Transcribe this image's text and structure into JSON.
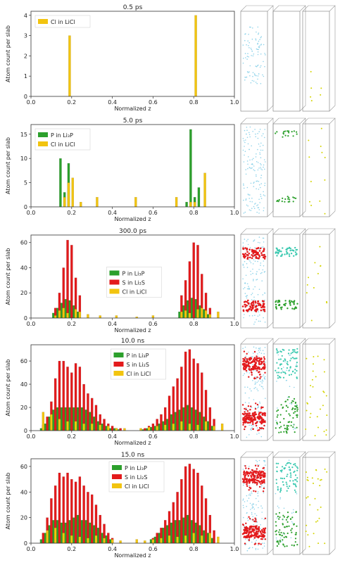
{
  "panels": [
    {
      "title": "0.5 ps",
      "chart_data": {
        "type": "bar",
        "title": "0.5 ps",
        "xlabel": "Normalized z",
        "ylabel": "Atom count per slab",
        "xlim": [
          0.0,
          1.0
        ],
        "ylim": [
          0,
          4.2
        ],
        "xticks": [
          "0.0",
          "0.2",
          "0.4",
          "0.6",
          "0.8",
          "1.0"
        ],
        "yticks": [
          0,
          1,
          2,
          3,
          4
        ],
        "grid": false,
        "legend_position": "top-left",
        "series": [
          {
            "name": "Cl in LiCl",
            "color": "#f2c40f",
            "x": [
              0.19,
              0.81
            ],
            "values": [
              3,
              4
            ]
          }
        ]
      },
      "snapshot": {
        "columns": [
          "light-blue-scatter",
          "empty",
          "sparse-yellow"
        ]
      }
    },
    {
      "title": "5.0 ps",
      "chart_data": {
        "type": "bar",
        "title": "5.0 ps",
        "xlabel": "Normalized z",
        "ylabel": "Atom count per slab",
        "xlim": [
          0.0,
          1.0
        ],
        "ylim": [
          0,
          17
        ],
        "xticks": [
          "0.0",
          "0.2",
          "0.4",
          "0.6",
          "0.8",
          "1.0"
        ],
        "yticks": [
          0,
          5,
          10,
          15
        ],
        "grid": false,
        "legend_position": "top-left",
        "series": [
          {
            "name": "P in Li₃P",
            "color": "#2ca02c",
            "x": [
              0.15,
              0.17,
              0.19,
              0.77,
              0.79,
              0.81,
              0.83
            ],
            "values": [
              10,
              3,
              9,
              1,
              16,
              2,
              4
            ]
          },
          {
            "name": "Cl in LiCl",
            "color": "#f2c40f",
            "x": [
              0.16,
              0.18,
              0.2,
              0.24,
              0.32,
              0.51,
              0.71,
              0.78,
              0.8,
              0.85
            ],
            "values": [
              2,
              5,
              6,
              1,
              2,
              2,
              2,
              1,
              1,
              7
            ]
          }
        ]
      },
      "snapshot": {
        "columns": [
          "light-blue-scatter",
          "green-bands",
          "sparse-yellow"
        ]
      }
    },
    {
      "title": "300.0 ps",
      "chart_data": {
        "type": "bar",
        "title": "300.0 ps",
        "xlabel": "Normalized z",
        "ylabel": "Atom count per slab",
        "xlim": [
          0.0,
          1.0
        ],
        "ylim": [
          0,
          66
        ],
        "xticks": [
          "0.0",
          "0.2",
          "0.4",
          "0.6",
          "0.8",
          "1.0"
        ],
        "yticks": [
          0,
          20,
          40,
          60
        ],
        "grid": false,
        "legend_position": "center",
        "series": [
          {
            "name": "P in Li₃P",
            "color": "#2ca02c",
            "x": [
              0.12,
              0.14,
              0.16,
              0.18,
              0.2,
              0.22,
              0.24,
              0.74,
              0.76,
              0.78,
              0.8,
              0.82,
              0.84,
              0.86,
              0.88
            ],
            "values": [
              4,
              8,
              12,
              15,
              14,
              10,
              5,
              5,
              10,
              14,
              16,
              15,
              10,
              7,
              3
            ]
          },
          {
            "name": "S in Li₂S",
            "color": "#e31a1c",
            "x": [
              0.12,
              0.14,
              0.16,
              0.18,
              0.2,
              0.22,
              0.24,
              0.74,
              0.76,
              0.78,
              0.8,
              0.82,
              0.84,
              0.86,
              0.88
            ],
            "values": [
              8,
              20,
              40,
              62,
              58,
              32,
              18,
              18,
              30,
              45,
              60,
              58,
              35,
              20,
              8
            ]
          },
          {
            "name": "Cl in LiCl",
            "color": "#f2c40f",
            "x": [
              0.11,
              0.13,
              0.15,
              0.17,
              0.21,
              0.23,
              0.27,
              0.33,
              0.41,
              0.51,
              0.59,
              0.73,
              0.75,
              0.77,
              0.81,
              0.83,
              0.85,
              0.87,
              0.91
            ],
            "values": [
              2,
              6,
              8,
              4,
              7,
              5,
              3,
              2,
              2,
              1,
              2,
              5,
              6,
              4,
              7,
              8,
              6,
              3,
              5
            ]
          }
        ]
      },
      "snapshot": {
        "columns": [
          "light-blue-with-red-bands",
          "cyan-green-bands",
          "sparse-yellow"
        ]
      }
    },
    {
      "title": "10.0 ns",
      "chart_data": {
        "type": "bar",
        "title": "10.0 ns",
        "xlabel": "Normalized z",
        "ylabel": "Atom count per slab",
        "xlim": [
          0.0,
          1.0
        ],
        "ylim": [
          0,
          74
        ],
        "xticks": [
          "0.0",
          "0.2",
          "0.4",
          "0.6",
          "0.8",
          "1.0"
        ],
        "yticks": [
          0,
          20,
          40,
          60
        ],
        "grid": false,
        "legend_position": "top-center",
        "series": [
          {
            "name": "P in Li₃P",
            "color": "#2ca02c",
            "x": [
              0.06,
              0.08,
              0.1,
              0.12,
              0.14,
              0.16,
              0.18,
              0.2,
              0.22,
              0.24,
              0.26,
              0.28,
              0.3,
              0.32,
              0.34,
              0.36,
              0.38,
              0.4,
              0.42,
              0.44,
              0.56,
              0.58,
              0.6,
              0.62,
              0.64,
              0.66,
              0.68,
              0.7,
              0.72,
              0.74,
              0.76,
              0.78,
              0.8,
              0.82,
              0.84,
              0.86,
              0.88,
              0.9
            ],
            "values": [
              2,
              6,
              12,
              18,
              20,
              20,
              20,
              20,
              20,
              20,
              20,
              18,
              16,
              12,
              8,
              6,
              4,
              2,
              2,
              1,
              1,
              2,
              3,
              4,
              6,
              8,
              10,
              14,
              16,
              18,
              20,
              22,
              20,
              18,
              16,
              12,
              8,
              4
            ]
          },
          {
            "name": "S in Li₂S",
            "color": "#e31a1c",
            "x": [
              0.06,
              0.08,
              0.1,
              0.12,
              0.14,
              0.16,
              0.18,
              0.2,
              0.22,
              0.24,
              0.26,
              0.28,
              0.3,
              0.32,
              0.34,
              0.36,
              0.38,
              0.4,
              0.42,
              0.44,
              0.56,
              0.58,
              0.6,
              0.62,
              0.64,
              0.66,
              0.68,
              0.7,
              0.72,
              0.74,
              0.76,
              0.78,
              0.8,
              0.82,
              0.84,
              0.86,
              0.88,
              0.9
            ],
            "values": [
              5,
              12,
              25,
              45,
              60,
              60,
              55,
              50,
              58,
              55,
              40,
              32,
              28,
              22,
              14,
              10,
              6,
              4,
              2,
              2,
              2,
              4,
              6,
              10,
              14,
              20,
              30,
              38,
              45,
              55,
              68,
              70,
              62,
              58,
              50,
              35,
              20,
              10
            ]
          },
          {
            "name": "Cl in LiCl",
            "color": "#f2c40f",
            "x": [
              0.05,
              0.09,
              0.13,
              0.17,
              0.21,
              0.25,
              0.29,
              0.33,
              0.37,
              0.41,
              0.45,
              0.53,
              0.57,
              0.61,
              0.65,
              0.69,
              0.73,
              0.77,
              0.81,
              0.85,
              0.89,
              0.93
            ],
            "values": [
              16,
              14,
              10,
              8,
              8,
              6,
              6,
              5,
              4,
              2,
              2,
              2,
              3,
              4,
              5,
              6,
              8,
              6,
              5,
              8,
              4,
              6
            ]
          }
        ]
      },
      "snapshot": {
        "columns": [
          "light-blue-with-red-clusters",
          "cyan-green-scatter",
          "sparse-yellow"
        ]
      }
    },
    {
      "title": "15.0 ns",
      "chart_data": {
        "type": "bar",
        "title": "15.0 ns",
        "xlabel": "Normalized z",
        "ylabel": "Atom count per slab",
        "xlim": [
          0.0,
          1.0
        ],
        "ylim": [
          0,
          66
        ],
        "xticks": [
          "0.0",
          "0.2",
          "0.4",
          "0.6",
          "0.8",
          "1.0"
        ],
        "yticks": [
          0,
          20,
          40,
          60
        ],
        "grid": false,
        "legend_position": "top-right",
        "series": [
          {
            "name": "P in Li₃P",
            "color": "#2ca02c",
            "x": [
              0.06,
              0.08,
              0.1,
              0.12,
              0.14,
              0.16,
              0.18,
              0.2,
              0.22,
              0.24,
              0.26,
              0.28,
              0.3,
              0.32,
              0.34,
              0.36,
              0.38,
              0.4,
              0.6,
              0.62,
              0.64,
              0.66,
              0.68,
              0.7,
              0.72,
              0.74,
              0.76,
              0.78,
              0.8,
              0.82,
              0.84,
              0.86,
              0.88,
              0.9
            ],
            "values": [
              3,
              8,
              14,
              18,
              18,
              16,
              16,
              18,
              20,
              22,
              18,
              18,
              16,
              14,
              12,
              8,
              6,
              3,
              3,
              5,
              8,
              12,
              14,
              16,
              18,
              18,
              20,
              22,
              18,
              16,
              14,
              10,
              8,
              4
            ]
          },
          {
            "name": "S in Li₂S",
            "color": "#e31a1c",
            "x": [
              0.06,
              0.08,
              0.1,
              0.12,
              0.14,
              0.16,
              0.18,
              0.2,
              0.22,
              0.24,
              0.26,
              0.28,
              0.3,
              0.32,
              0.34,
              0.36,
              0.38,
              0.4,
              0.6,
              0.62,
              0.64,
              0.66,
              0.68,
              0.7,
              0.72,
              0.74,
              0.76,
              0.78,
              0.8,
              0.82,
              0.84,
              0.86,
              0.88,
              0.9
            ],
            "values": [
              8,
              20,
              35,
              45,
              55,
              52,
              55,
              50,
              48,
              52,
              45,
              40,
              38,
              30,
              22,
              15,
              8,
              4,
              4,
              8,
              12,
              18,
              25,
              32,
              40,
              50,
              60,
              62,
              58,
              55,
              45,
              35,
              22,
              10
            ]
          },
          {
            "name": "Cl in LiCl",
            "color": "#f2c40f",
            "x": [
              0.07,
              0.11,
              0.15,
              0.19,
              0.23,
              0.27,
              0.31,
              0.35,
              0.39,
              0.43,
              0.51,
              0.55,
              0.59,
              0.63,
              0.67,
              0.71,
              0.75,
              0.79,
              0.83,
              0.87,
              0.91
            ],
            "values": [
              10,
              12,
              8,
              6,
              5,
              4,
              6,
              4,
              3,
              2,
              3,
              2,
              3,
              4,
              6,
              5,
              6,
              8,
              6,
              8,
              5
            ]
          }
        ]
      },
      "snapshot": {
        "columns": [
          "light-blue-with-red-clusters",
          "cyan-green-scatter",
          "sparse-yellow"
        ]
      }
    }
  ],
  "colors": {
    "P": "#2ca02c",
    "S": "#e31a1c",
    "Cl": "#f2c40f",
    "Li": "#8fd3ea"
  }
}
